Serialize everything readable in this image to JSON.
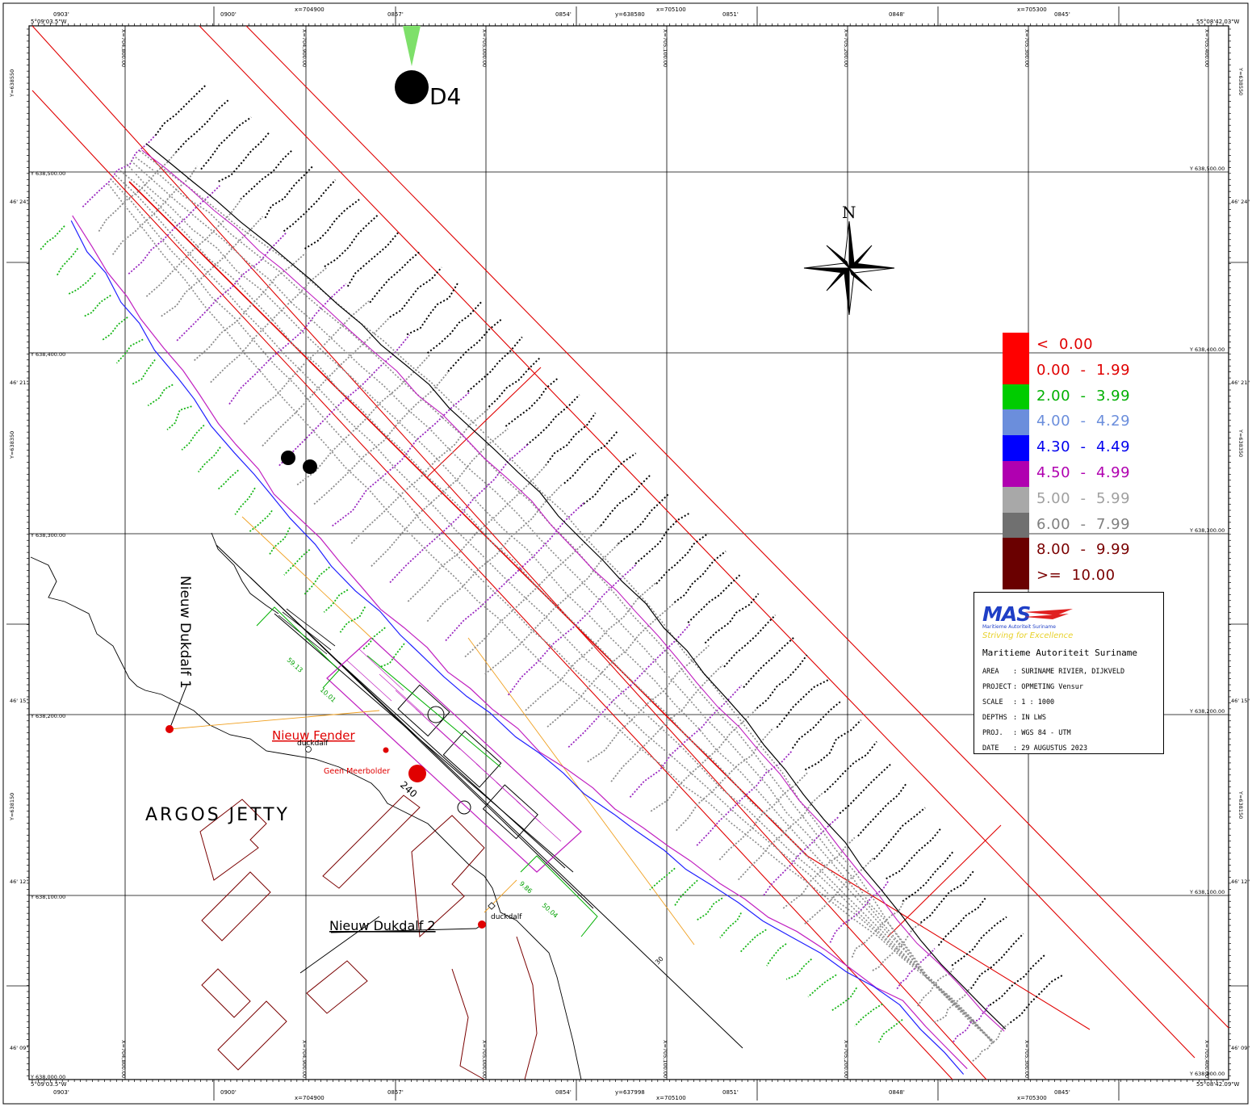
{
  "map": {
    "top_lon_labels": [
      "0903'",
      "0900'",
      "0857'",
      "0854'",
      "0851'",
      "0848'",
      "0845'"
    ],
    "bottom_lon_labels": [
      "0903'",
      "0900'",
      "0857'",
      "0854'",
      "0851'",
      "0848'",
      "0845'"
    ],
    "top_x_labels": [
      "x=704900",
      "x=705100",
      "x=705300"
    ],
    "bottom_x_labels": [
      "x=704900",
      "x=705100",
      "x=705300"
    ],
    "top_y_label": "y=638580",
    "bottom_y_label": "y=637998",
    "corner_tl": "5°09'03.5\"W",
    "corner_tr": "55°08'42.03\"W",
    "corner_bl": "5°09'03.5\"W",
    "corner_br": "55°08'42.09\"W",
    "grid_x_labels": [
      "X=704,800.00",
      "X=704,900.00",
      "X=705,000.00",
      "X=705,100.00",
      "X=705,200.00",
      "X=705,300.00",
      "X=705,400.00"
    ],
    "grid_y_labels": [
      "Y 638,500.00",
      "Y 638,400.00",
      "Y 638,300.00",
      "Y 638,200.00",
      "Y 638,100.00",
      "Y 638,000.00"
    ],
    "side_y_labels": [
      "Y=638550",
      "Y=638350",
      "Y=638150"
    ],
    "left_lat_labels": [
      "46' 24\"",
      "46' 21\"",
      "46' 15\"",
      "46' 12\"",
      "46' 09\""
    ],
    "right_lat_labels": [
      "46' 24\"",
      "46' 21\"",
      "46' 15\"",
      "46' 12\"",
      "46' 09\""
    ],
    "station_label": "D4",
    "north_label": "N",
    "annotations": {
      "dukdalf1": "Nieuw Dukdalf 1",
      "fender": "Nieuw Fender",
      "duckdalf_upper": "duckdalf",
      "meerbolder": "Geen Meerbolder",
      "jetty": "ARGOS JETTY",
      "dukdalf2": "Nieuw Dukdalf 2",
      "duckdalf_lower": "duckdalf",
      "num_240": "240",
      "num_30": "30",
      "dim_1": "59.13",
      "dim_2": "10.01",
      "dim_3": "9.86",
      "dim_4": "50.04"
    }
  },
  "legend": [
    {
      "label": "<  0.00",
      "color": "#ff0000",
      "text_color": "#e00000"
    },
    {
      "label": "0.00  -  1.99",
      "color": "#ff0000",
      "text_color": "#e00000"
    },
    {
      "label": "2.00  -  3.99",
      "color": "#00cc00",
      "text_color": "#00b000"
    },
    {
      "label": "4.00  -  4.29",
      "color": "#6b8edc",
      "text_color": "#6b8edc"
    },
    {
      "label": "4.30  -  4.49",
      "color": "#0000ff",
      "text_color": "#0000ee"
    },
    {
      "label": "4.50  -  4.99",
      "color": "#b000b0",
      "text_color": "#b000b0"
    },
    {
      "label": "5.00  -  5.99",
      "color": "#a8a8a8",
      "text_color": "#a0a0a0"
    },
    {
      "label": "6.00  -  7.99",
      "color": "#707070",
      "text_color": "#808080"
    },
    {
      "label": "8.00  -  9.99",
      "color": "#6a0000",
      "text_color": "#7a0000"
    },
    {
      "label": ">=  10.00",
      "color": "#6a0000",
      "text_color": "#7a0000"
    }
  ],
  "titleblock": {
    "logo": "MAS",
    "logo_sub": "Maritieme Autoriteit Suriname",
    "slogan": "Striving for Excellence",
    "org": "Maritieme Autoriteit Suriname",
    "rows": [
      {
        "key": "AREA",
        "value": ": SURINAME RIVIER, DIJKVELD"
      },
      {
        "key": "PROJECT",
        "value": ": OPMETING Vensur"
      },
      {
        "key": "SCALE",
        "value": ": 1 : 1000"
      },
      {
        "key": "DEPTHS",
        "value": ": IN LWS"
      },
      {
        "key": "PROJ.",
        "value": ": WGS 84 - UTM"
      },
      {
        "key": "DATE",
        "value": ": 29 AUGUSTUS 2023"
      }
    ]
  }
}
